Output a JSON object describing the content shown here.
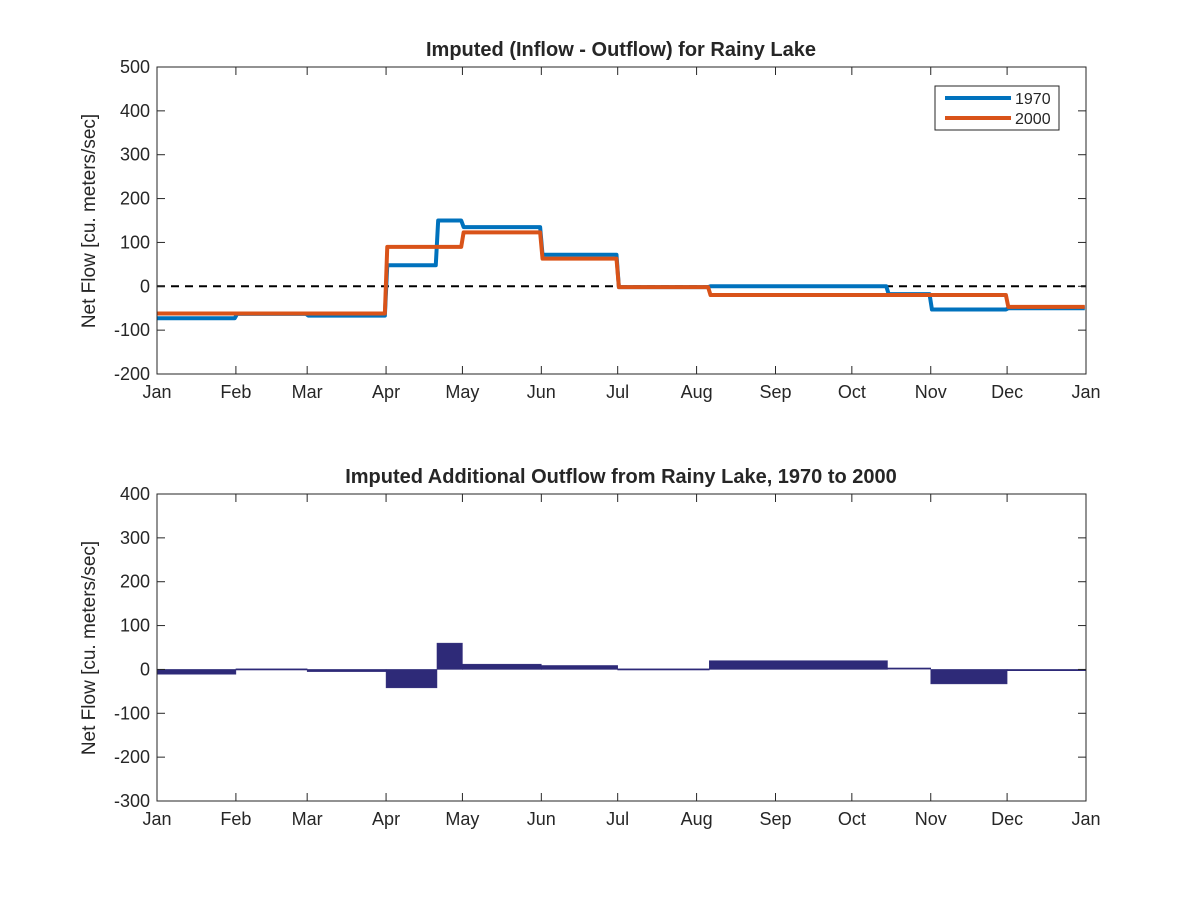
{
  "colors": {
    "series_1970": "#0072BD",
    "series_2000": "#D95319",
    "diff_fill": "#2E2A78",
    "axes": "#262626",
    "zero_line": "#000000"
  },
  "chart_data": [
    {
      "type": "line",
      "title": "Imputed (Inflow - Outflow) for Rainy Lake",
      "xlabel": "",
      "ylabel": "Net Flow [cu. meters/sec]",
      "x_unit": "day of year",
      "xlim": [
        1,
        366
      ],
      "ylim": [
        -200,
        500
      ],
      "yticks": [
        -200,
        -100,
        0,
        100,
        200,
        300,
        400,
        500
      ],
      "xtick_labels": [
        "Jan",
        "Feb",
        "Mar",
        "Apr",
        "May",
        "Jun",
        "Jul",
        "Aug",
        "Sep",
        "Oct",
        "Nov",
        "Dec",
        "Jan"
      ],
      "xtick_days": [
        1,
        32,
        60,
        91,
        121,
        152,
        182,
        213,
        244,
        274,
        305,
        335,
        366
      ],
      "zero_line": "dashed",
      "grid": false,
      "legend": "top-right",
      "series": [
        {
          "name": "1970",
          "color_key": "series_1970",
          "steps": [
            {
              "x0": 1,
              "x1": 32,
              "y": -73
            },
            {
              "x0": 32,
              "x1": 60,
              "y": -63
            },
            {
              "x0": 60,
              "x1": 91,
              "y": -67
            },
            {
              "x0": 91,
              "x1": 111,
              "y": 48
            },
            {
              "x0": 111,
              "x1": 121,
              "y": 150
            },
            {
              "x0": 121,
              "x1": 152,
              "y": 135
            },
            {
              "x0": 152,
              "x1": 182,
              "y": 72
            },
            {
              "x0": 182,
              "x1": 218,
              "y": -2
            },
            {
              "x0": 218,
              "x1": 288,
              "y": 0
            },
            {
              "x0": 288,
              "x1": 305,
              "y": -18
            },
            {
              "x0": 305,
              "x1": 335,
              "y": -53
            },
            {
              "x0": 335,
              "x1": 366,
              "y": -50
            }
          ]
        },
        {
          "name": "2000",
          "color_key": "series_2000",
          "steps": [
            {
              "x0": 1,
              "x1": 91,
              "y": -62
            },
            {
              "x0": 91,
              "x1": 121,
              "y": 90
            },
            {
              "x0": 121,
              "x1": 152,
              "y": 123
            },
            {
              "x0": 152,
              "x1": 182,
              "y": 63
            },
            {
              "x0": 182,
              "x1": 218,
              "y": -2
            },
            {
              "x0": 218,
              "x1": 335,
              "y": -20
            },
            {
              "x0": 335,
              "x1": 366,
              "y": -47
            }
          ]
        }
      ]
    },
    {
      "type": "area",
      "title": "Imputed Additional Outflow from Rainy Lake, 1970 to 2000",
      "xlabel": "",
      "ylabel": "Net Flow [cu. meters/sec]",
      "x_unit": "day of year",
      "xlim": [
        1,
        366
      ],
      "ylim": [
        -300,
        400
      ],
      "yticks": [
        -300,
        -200,
        -100,
        0,
        100,
        200,
        300,
        400
      ],
      "xtick_labels": [
        "Jan",
        "Feb",
        "Mar",
        "Apr",
        "May",
        "Jun",
        "Jul",
        "Aug",
        "Sep",
        "Oct",
        "Nov",
        "Dec",
        "Jan"
      ],
      "xtick_days": [
        1,
        32,
        60,
        91,
        121,
        152,
        182,
        213,
        244,
        274,
        305,
        335,
        366
      ],
      "grid": false,
      "legend": "none",
      "color_key": "diff_fill",
      "steps": [
        {
          "x0": 1,
          "x1": 32,
          "y": -11
        },
        {
          "x0": 32,
          "x1": 60,
          "y": -1
        },
        {
          "x0": 60,
          "x1": 91,
          "y": -5
        },
        {
          "x0": 91,
          "x1": 111,
          "y": -42
        },
        {
          "x0": 111,
          "x1": 121,
          "y": 60
        },
        {
          "x0": 121,
          "x1": 152,
          "y": 12
        },
        {
          "x0": 152,
          "x1": 182,
          "y": 9
        },
        {
          "x0": 182,
          "x1": 218,
          "y": 0
        },
        {
          "x0": 218,
          "x1": 288,
          "y": 20
        },
        {
          "x0": 288,
          "x1": 305,
          "y": 2
        },
        {
          "x0": 305,
          "x1": 335,
          "y": -33
        },
        {
          "x0": 335,
          "x1": 366,
          "y": -3
        }
      ]
    }
  ]
}
